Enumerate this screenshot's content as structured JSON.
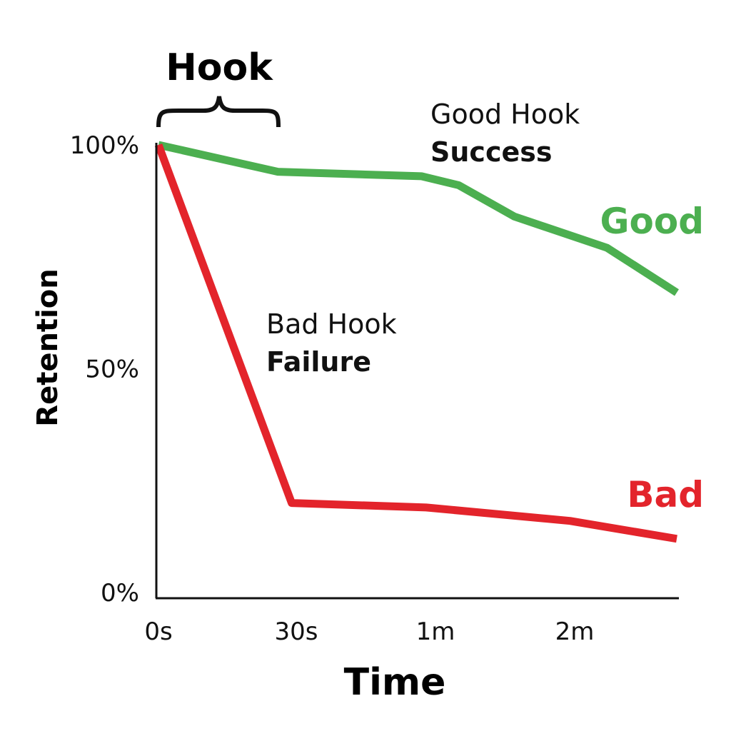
{
  "chart_data": {
    "type": "line",
    "title": "",
    "xlabel": "Time",
    "ylabel": "Retention",
    "x_ticks": [
      {
        "label": "0s",
        "value": 0
      },
      {
        "label": "30s",
        "value": 30
      },
      {
        "label": "1m",
        "value": 60
      },
      {
        "label": "2m",
        "value": 120
      }
    ],
    "y_ticks": [
      {
        "label": "0%",
        "value": 0
      },
      {
        "label": "50%",
        "value": 50
      },
      {
        "label": "100%",
        "value": 100
      }
    ],
    "ylim": [
      0,
      100
    ],
    "grid": false,
    "series": [
      {
        "name": "Good",
        "color": "#4caf50",
        "x": [
          0,
          26,
          57,
          70,
          94,
          134,
          164
        ],
        "y": [
          100,
          94,
          93,
          91,
          84,
          77,
          67
        ]
      },
      {
        "name": "Bad",
        "color": "#e3242b",
        "x": [
          0,
          29,
          58,
          118,
          164
        ],
        "y": [
          100,
          20,
          19,
          16,
          12
        ]
      }
    ],
    "annotations": {
      "hook_label": "Hook",
      "good_line1": "Good Hook",
      "good_line2": "Success",
      "bad_line1": "Bad Hook",
      "bad_line2": "Failure"
    }
  }
}
